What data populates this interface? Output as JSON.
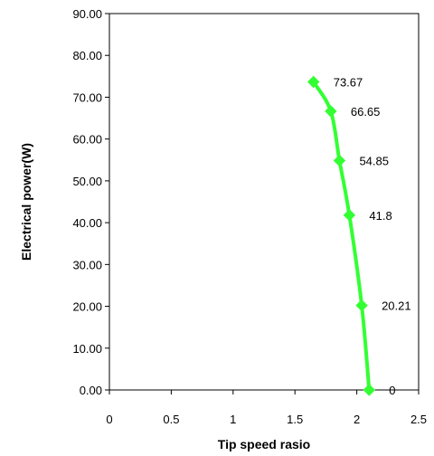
{
  "chart_data": {
    "type": "scatter",
    "title": "",
    "xlabel": "Tip speed rasio",
    "ylabel": "Electrical power(W)",
    "xlim": [
      0,
      2.5
    ],
    "ylim": [
      0,
      90
    ],
    "x_ticks": [
      "0",
      "0.5",
      "1",
      "1.5",
      "2",
      "2.5"
    ],
    "y_ticks": [
      "0.00",
      "10.00",
      "20.00",
      "30.00",
      "40.00",
      "50.00",
      "60.00",
      "70.00",
      "80.00",
      "90.00"
    ],
    "grid": false,
    "legend": "none",
    "series": [
      {
        "color": "#33ff33",
        "marker": "diamond",
        "x": [
          1.65,
          1.79,
          1.86,
          1.94,
          2.04,
          2.1
        ],
        "y": [
          73.67,
          66.65,
          54.85,
          41.8,
          20.21,
          0
        ],
        "labels": [
          "73.67",
          "66.65",
          "54.85",
          "41.8",
          "20.21",
          "0"
        ]
      }
    ]
  }
}
